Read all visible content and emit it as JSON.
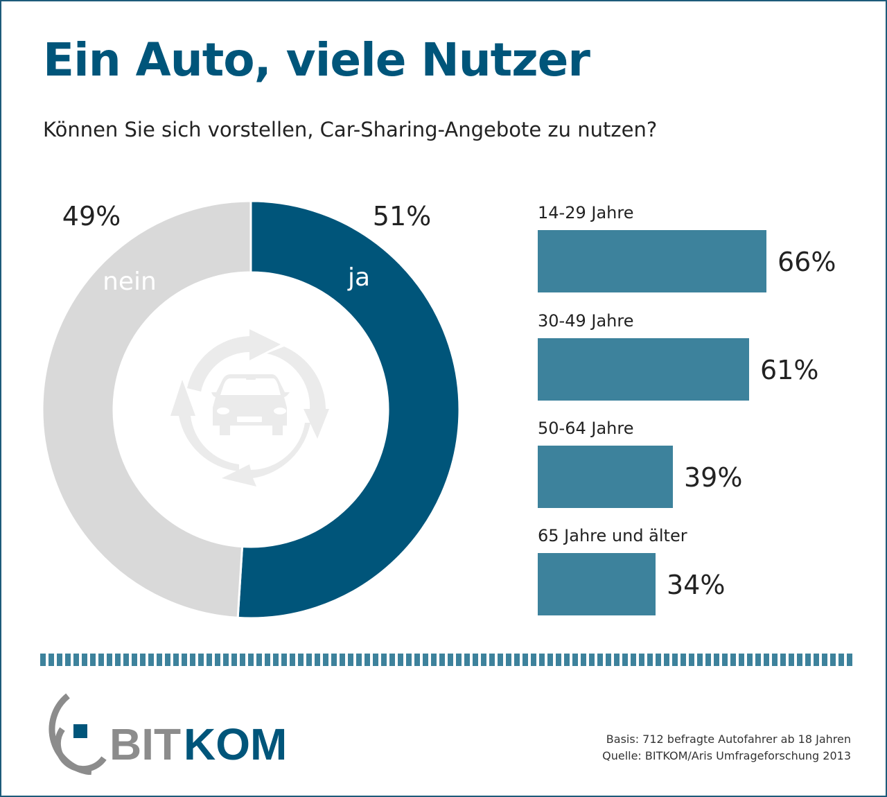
{
  "title": "Ein Auto, viele Nutzer",
  "subtitle": "Können Sie sich vorstellen, Car-Sharing-Angebote zu nutzen?",
  "colors": {
    "ja": "#00557a",
    "nein": "#d9d9d9",
    "bars": "#3d829c",
    "title": "#00557a",
    "logo_gray": "#8c8c8c"
  },
  "chart_data": [
    {
      "type": "pie",
      "variant": "donut",
      "categories": [
        "ja",
        "nein"
      ],
      "values": [
        51,
        49
      ],
      "labels": [
        "51%",
        "49%"
      ],
      "center_icon": "car-sharing-cycle-icon"
    },
    {
      "type": "bar",
      "orientation": "horizontal",
      "categories": [
        "14-29 Jahre",
        "30-49 Jahre",
        "50-64 Jahre",
        "65 Jahre und älter"
      ],
      "values": [
        66,
        61,
        39,
        34
      ],
      "labels": [
        "66%",
        "61%",
        "39%",
        "34%"
      ]
    }
  ],
  "footer": {
    "basis": "Basis: 712 befragte Autofahrer ab 18 Jahren",
    "quelle": "Quelle: BITKOM/Aris Umfrageforschung 2013"
  },
  "logo": {
    "text_a": "BIT",
    "text_b": "KOM"
  }
}
